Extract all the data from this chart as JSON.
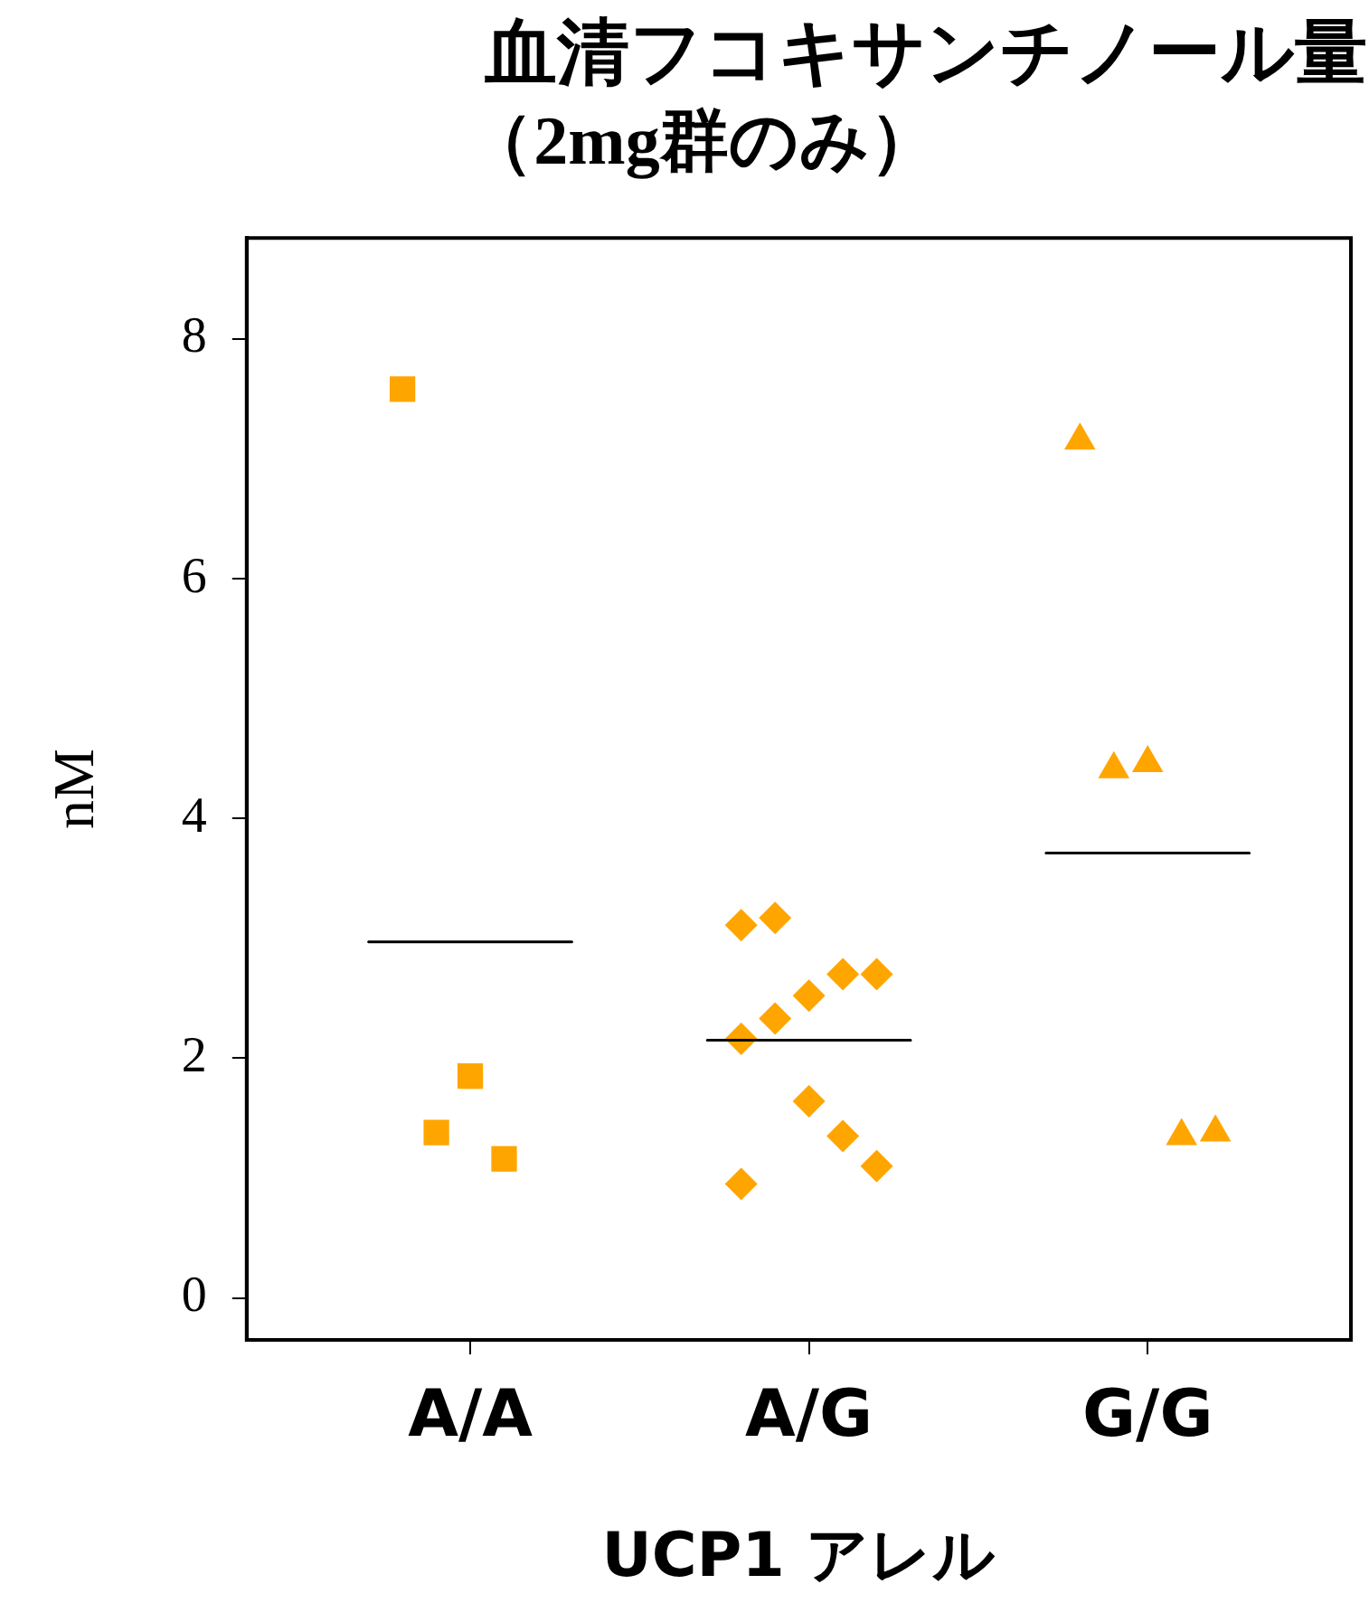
{
  "chart_data": {
    "type": "scatter",
    "title": "血清フコキサンチノール量",
    "subtitle": "（2mg群のみ）",
    "xlabel": "UCP1 アレル",
    "ylabel": "nM",
    "categories": [
      "A/A",
      "A/G",
      "G/G"
    ],
    "ylim": [
      -0.35,
      8.84
    ],
    "yticks": [
      0,
      2,
      4,
      6,
      8
    ],
    "series": [
      {
        "type": "scatter",
        "marker": "square",
        "color": "#ffa500",
        "x": [
          "A/A",
          "A/A",
          "A/A",
          "A/A"
        ],
        "values": [
          7.58,
          1.38,
          1.85,
          1.16
        ]
      },
      {
        "type": "scatter",
        "marker": "diamond",
        "color": "#ffa500",
        "x": [
          "A/G",
          "A/G",
          "A/G",
          "A/G",
          "A/G",
          "A/G",
          "A/G",
          "A/G",
          "A/G",
          "A/G",
          "A/G"
        ],
        "values": [
          3.11,
          3.17,
          2.52,
          2.7,
          2.7,
          2.16,
          2.33,
          1.64,
          1.35,
          1.1,
          0.95
        ]
      },
      {
        "type": "scatter",
        "marker": "triangle",
        "color": "#ffa500",
        "x": [
          "G/G",
          "G/G",
          "G/G",
          "G/G",
          "G/G"
        ],
        "values": [
          7.15,
          4.41,
          4.46,
          1.35,
          1.38
        ]
      },
      {
        "type": "box",
        "color": "#000000",
        "boxes": [
          {
            "low": 2.97,
            "q1": 2.97,
            "median": 2.97,
            "q3": 2.97,
            "high": 2.97
          },
          {
            "low": 2.15,
            "q1": 2.15,
            "median": 2.15,
            "q3": 2.15,
            "high": 2.15
          },
          {
            "low": 3.71,
            "q1": 3.71,
            "median": 3.71,
            "q3": 3.71,
            "high": 3.71
          }
        ]
      }
    ]
  }
}
